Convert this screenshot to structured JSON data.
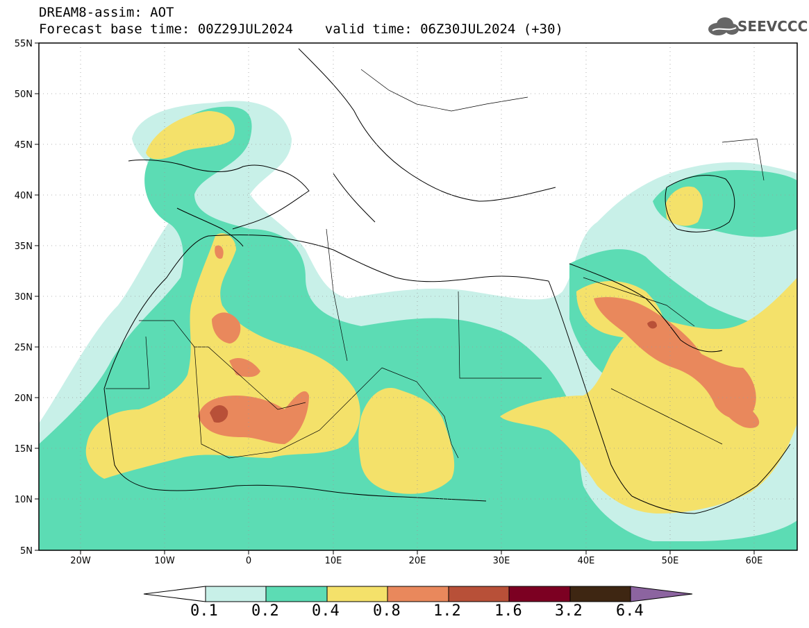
{
  "header": {
    "title": "DREAM8-assim: AOT",
    "subtitle": "Forecast base time: 00Z29JUL2024    valid time: 06Z30JUL2024 (+30)",
    "logo_text": "SEEVCCC"
  },
  "map": {
    "lat_labels": [
      "55N",
      "50N",
      "45N",
      "40N",
      "35N",
      "30N",
      "25N",
      "20N",
      "15N",
      "10N",
      "5N"
    ],
    "lon_labels": [
      "20W",
      "10W",
      "0",
      "10E",
      "20E",
      "30E",
      "40E",
      "50E",
      "60E"
    ],
    "lat_range": [
      5,
      55
    ],
    "lon_range": [
      -25,
      65
    ],
    "grid": "dotted",
    "variable": "AOT"
  },
  "colorbar": {
    "labels": [
      "0.1",
      "0.2",
      "0.4",
      "0.8",
      "1.2",
      "1.6",
      "3.2",
      "6.4"
    ],
    "colors": [
      "#ffffff",
      "#c8f0e8",
      "#5cdcb4",
      "#f4e16a",
      "#e9885c",
      "#b85038",
      "#7c0022",
      "#3e2612",
      "#8c64a0"
    ]
  },
  "colors": {
    "level1": "#c8f0e8",
    "level2": "#5cdcb4",
    "level3": "#f4e16a",
    "level4": "#e9885c",
    "level5": "#b85038"
  }
}
